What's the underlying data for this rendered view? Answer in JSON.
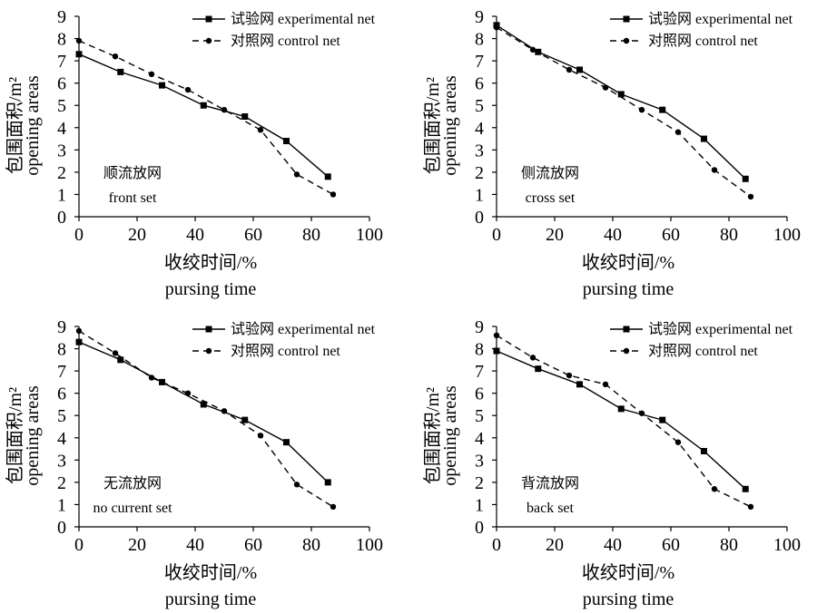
{
  "chart_data": [
    {
      "type": "line",
      "annotation": [
        "顺流放网",
        "front set"
      ],
      "xlabel": [
        "收绞时间/%",
        "pursing time"
      ],
      "ylabel": [
        "包围面积/m²",
        "opening areas"
      ],
      "xlim": [
        0,
        100
      ],
      "ylim": [
        0,
        9
      ],
      "xticks": [
        0,
        20,
        40,
        60,
        80,
        100
      ],
      "yticks": [
        0,
        1,
        2,
        3,
        4,
        5,
        6,
        7,
        8,
        9
      ],
      "legend_position": "top-right",
      "series": [
        {
          "name": "试验网 experimental net",
          "style": "solid",
          "marker": "square",
          "color": "#000000",
          "x": [
            0,
            14.3,
            28.6,
            42.9,
            57.1,
            71.4,
            85.7
          ],
          "y": [
            7.3,
            6.5,
            5.9,
            5.0,
            4.5,
            3.4,
            1.8
          ]
        },
        {
          "name": "对照网 control net",
          "style": "dashed",
          "marker": "circle",
          "color": "#000000",
          "x": [
            0,
            12.5,
            25,
            37.5,
            50,
            62.5,
            75,
            87.5
          ],
          "y": [
            7.9,
            7.2,
            6.4,
            5.7,
            4.8,
            3.9,
            1.9,
            1.0
          ]
        }
      ]
    },
    {
      "type": "line",
      "annotation": [
        "侧流放网",
        "cross set"
      ],
      "xlabel": [
        "收绞时间/%",
        "pursing time"
      ],
      "ylabel": [
        "包围面积/m²",
        "opening areas"
      ],
      "xlim": [
        0,
        100
      ],
      "ylim": [
        0,
        9
      ],
      "xticks": [
        0,
        20,
        40,
        60,
        80,
        100
      ],
      "yticks": [
        0,
        1,
        2,
        3,
        4,
        5,
        6,
        7,
        8,
        9
      ],
      "legend_position": "top-right",
      "series": [
        {
          "name": "试验网 experimental net",
          "style": "solid",
          "marker": "square",
          "color": "#000000",
          "x": [
            0,
            14.3,
            28.6,
            42.9,
            57.1,
            71.4,
            85.7
          ],
          "y": [
            8.6,
            7.4,
            6.6,
            5.5,
            4.8,
            3.5,
            1.7
          ]
        },
        {
          "name": "对照网 control net",
          "style": "dashed",
          "marker": "circle",
          "color": "#000000",
          "x": [
            0,
            12.5,
            25,
            37.5,
            50,
            62.5,
            75,
            87.5
          ],
          "y": [
            8.5,
            7.5,
            6.6,
            5.8,
            4.8,
            3.8,
            2.1,
            0.9
          ]
        }
      ]
    },
    {
      "type": "line",
      "annotation": [
        "无流放网",
        "no current set"
      ],
      "xlabel": [
        "收绞时间/%",
        "pursing time"
      ],
      "ylabel": [
        "包围面积/m²",
        "opening areas"
      ],
      "xlim": [
        0,
        100
      ],
      "ylim": [
        0,
        9
      ],
      "xticks": [
        0,
        20,
        40,
        60,
        80,
        100
      ],
      "yticks": [
        0,
        1,
        2,
        3,
        4,
        5,
        6,
        7,
        8,
        9
      ],
      "legend_position": "top-right",
      "series": [
        {
          "name": "试验网 experimental net",
          "style": "solid",
          "marker": "square",
          "color": "#000000",
          "x": [
            0,
            14.3,
            28.6,
            42.9,
            57.1,
            71.4,
            85.7
          ],
          "y": [
            8.3,
            7.5,
            6.5,
            5.5,
            4.8,
            3.8,
            2.0
          ]
        },
        {
          "name": "对照网 control net",
          "style": "dashed",
          "marker": "circle",
          "color": "#000000",
          "x": [
            0,
            12.5,
            25,
            37.5,
            50,
            62.5,
            75,
            87.5
          ],
          "y": [
            8.8,
            7.8,
            6.7,
            6.0,
            5.2,
            4.1,
            1.9,
            0.9
          ]
        }
      ]
    },
    {
      "type": "line",
      "annotation": [
        "背流放网",
        "back set"
      ],
      "xlabel": [
        "收绞时间/%",
        "pursing time"
      ],
      "ylabel": [
        "包围面积/m²",
        "opening areas"
      ],
      "xlim": [
        0,
        100
      ],
      "ylim": [
        0,
        9
      ],
      "xticks": [
        0,
        20,
        40,
        60,
        80,
        100
      ],
      "yticks": [
        0,
        1,
        2,
        3,
        4,
        5,
        6,
        7,
        8,
        9
      ],
      "legend_position": "top-right",
      "series": [
        {
          "name": "试验网 experimental net",
          "style": "solid",
          "marker": "square",
          "color": "#000000",
          "x": [
            0,
            14.3,
            28.6,
            42.9,
            57.1,
            71.4,
            85.7
          ],
          "y": [
            7.9,
            7.1,
            6.4,
            5.3,
            4.8,
            3.4,
            1.7
          ]
        },
        {
          "name": "对照网 control net",
          "style": "dashed",
          "marker": "circle",
          "color": "#000000",
          "x": [
            0,
            12.5,
            25,
            37.5,
            50,
            62.5,
            75,
            87.5
          ],
          "y": [
            8.6,
            7.6,
            6.8,
            6.4,
            5.1,
            3.8,
            1.7,
            0.9
          ]
        }
      ]
    }
  ]
}
